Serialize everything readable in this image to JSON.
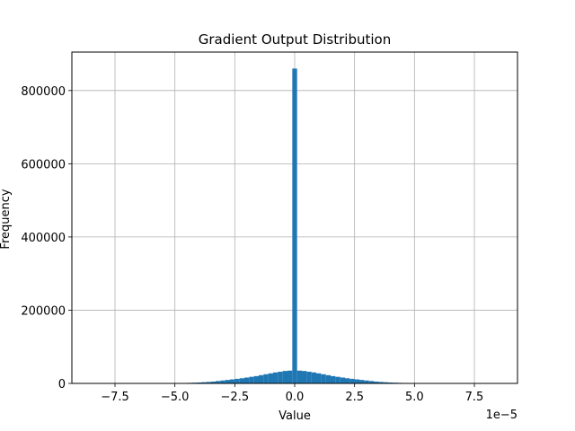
{
  "chart_data": {
    "type": "bar",
    "title": "Gradient Output Distribution",
    "xlabel": "Value",
    "ylabel": "Frequency",
    "x_offset_label": "1e−5",
    "xlim": [
      -9.3,
      9.3
    ],
    "ylim": [
      0,
      905000
    ],
    "x_ticks": [
      -7.5,
      -5.0,
      -2.5,
      0.0,
      2.5,
      5.0,
      7.5
    ],
    "x_tick_labels": [
      "−7.5",
      "−5.0",
      "−2.5",
      "0.0",
      "2.5",
      "5.0",
      "7.5"
    ],
    "y_ticks": [
      0,
      200000,
      400000,
      600000,
      800000
    ],
    "y_tick_labels": [
      "0",
      "200000",
      "400000",
      "600000",
      "800000"
    ],
    "grid": true,
    "bar_color": "#1f77b4",
    "bin_width": 0.2,
    "bins_x": [
      -4.4,
      -4.2,
      -4.0,
      -3.8,
      -3.6,
      -3.4,
      -3.2,
      -3.0,
      -2.8,
      -2.6,
      -2.4,
      -2.2,
      -2.0,
      -1.8,
      -1.6,
      -1.4,
      -1.2,
      -1.0,
      -0.8,
      -0.6,
      -0.4,
      -0.2,
      0.0,
      0.2,
      0.4,
      0.6,
      0.8,
      1.0,
      1.2,
      1.4,
      1.6,
      1.8,
      2.0,
      2.2,
      2.4,
      2.6,
      2.8,
      3.0,
      3.2,
      3.4,
      3.6,
      3.8,
      4.0,
      4.2,
      4.4
    ],
    "frequencies": [
      1500,
      2000,
      2500,
      3200,
      4000,
      5000,
      6500,
      8000,
      9500,
      11000,
      12500,
      14000,
      16000,
      18000,
      20000,
      22500,
      25000,
      27500,
      30000,
      32000,
      34000,
      35000,
      860000,
      35000,
      34000,
      32000,
      30000,
      27500,
      25000,
      22500,
      20000,
      18000,
      16000,
      14000,
      12500,
      11000,
      9500,
      8000,
      6500,
      5000,
      4000,
      3200,
      2500,
      2000,
      1500
    ]
  }
}
